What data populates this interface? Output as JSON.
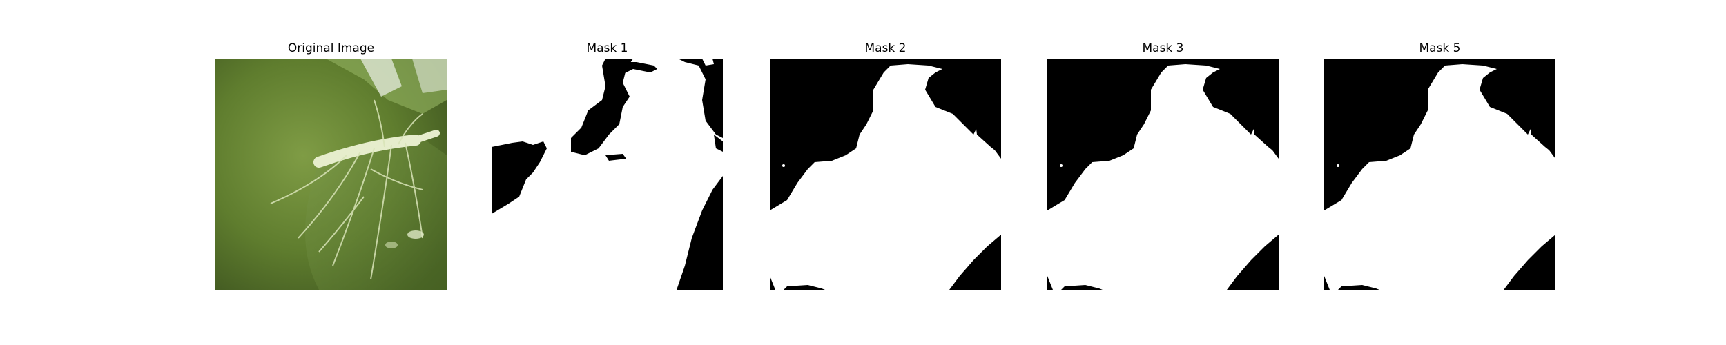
{
  "figure": {
    "panels": [
      {
        "title": "Original Image"
      },
      {
        "title": "Mask 1"
      },
      {
        "title": "Mask 2"
      },
      {
        "title": "Mask 3"
      },
      {
        "title": "Mask 5"
      }
    ]
  },
  "colors": {
    "background": "#ffffff",
    "mask_foreground": "#ffffff",
    "mask_background": "#000000",
    "leaf_dark": "#4f6a27",
    "leaf_mid": "#6f8f3a",
    "leaf_light": "#9db96a",
    "vein": "#e8efcf"
  }
}
